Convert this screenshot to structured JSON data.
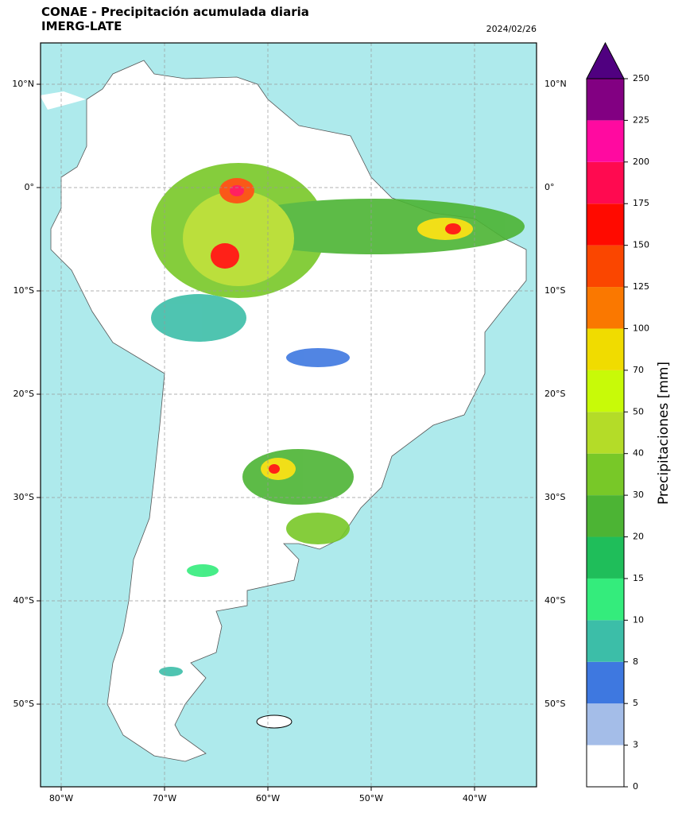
{
  "header": {
    "title": "CONAE - Precipitación acumulada diaria",
    "subtitle": "IMERG-LATE",
    "date": "2024/02/26"
  },
  "map": {
    "lon_lim": [
      -82,
      -34
    ],
    "lat_lim": [
      -58,
      14
    ],
    "lon_ticks": [
      {
        "value": -80,
        "label": "80°W"
      },
      {
        "value": -70,
        "label": "70°W"
      },
      {
        "value": -60,
        "label": "60°W"
      },
      {
        "value": -50,
        "label": "50°W"
      },
      {
        "value": -40,
        "label": "40°W"
      }
    ],
    "lat_ticks": [
      {
        "value": 10,
        "label": "10°N"
      },
      {
        "value": 0,
        "label": "0°"
      },
      {
        "value": -10,
        "label": "10°S"
      },
      {
        "value": -20,
        "label": "20°S"
      },
      {
        "value": -30,
        "label": "30°S"
      },
      {
        "value": -40,
        "label": "40°S"
      },
      {
        "value": -50,
        "label": "50°S"
      }
    ],
    "grid": true
  },
  "colorbar": {
    "label": "Precipitaciones [mm]",
    "ticks": [
      0,
      3,
      5,
      8,
      10,
      15,
      20,
      30,
      40,
      50,
      70,
      100,
      125,
      150,
      175,
      200,
      225,
      250
    ],
    "colors": [
      "#ffffff",
      "#a4bde8",
      "#3e78e0",
      "#3cbea8",
      "#34ec7c",
      "#1fbe5a",
      "#4cb434",
      "#78c828",
      "#b4dc28",
      "#c8fa08",
      "#f0dc00",
      "#fa7800",
      "#fa4600",
      "#ff0a00",
      "#ff0a50",
      "#ff0aa0",
      "#820082"
    ],
    "over_color": "#500080"
  }
}
